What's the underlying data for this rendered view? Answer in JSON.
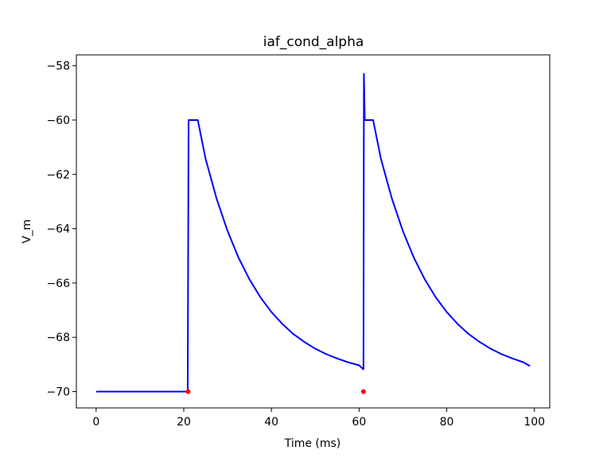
{
  "chart_data": {
    "type": "line",
    "title": "iaf_cond_alpha",
    "xlabel": "Time (ms)",
    "ylabel": "V_m",
    "xlim": [
      -4.5,
      103.5
    ],
    "ylim": [
      -70.6,
      -57.6
    ],
    "xticks": [
      0,
      20,
      40,
      60,
      80,
      100
    ],
    "yticks": [
      -70,
      -68,
      -66,
      -64,
      -62,
      -60,
      -58
    ],
    "xtick_labels": [
      "0",
      "20",
      "40",
      "60",
      "80",
      "100"
    ],
    "ytick_labels": [
      "−70",
      "−68",
      "−66",
      "−64",
      "−62",
      "−60",
      "−58"
    ],
    "grid": false,
    "series": [
      {
        "color": "#0000ff",
        "style": "line",
        "x": [
          0,
          20.9,
          21.1,
          23.2,
          25,
          27.5,
          30,
          32.5,
          35,
          37.5,
          40,
          42.5,
          45,
          47.5,
          50,
          52.5,
          55,
          57.5,
          60,
          61,
          61.1,
          61.3,
          61.4,
          63.2,
          65,
          67.5,
          70,
          72.5,
          75,
          77.5,
          80,
          82.5,
          85,
          87.5,
          90,
          92.5,
          95,
          97.5,
          99
        ],
        "y": [
          -70,
          -70,
          -60,
          -60,
          -61.44,
          -62.9,
          -64.09,
          -65.07,
          -65.87,
          -66.53,
          -67.07,
          -67.51,
          -67.88,
          -68.17,
          -68.42,
          -68.62,
          -68.78,
          -68.92,
          -69.03,
          -69.18,
          -58.3,
          -60,
          -60,
          -60,
          -61.44,
          -62.9,
          -64.09,
          -65.07,
          -65.87,
          -66.53,
          -67.07,
          -67.51,
          -67.88,
          -68.17,
          -68.42,
          -68.62,
          -68.78,
          -68.92,
          -69.06
        ]
      },
      {
        "color": "#ff0000",
        "style": "scatter",
        "x": [
          21,
          61
        ],
        "y": [
          -70,
          -70
        ]
      }
    ]
  }
}
